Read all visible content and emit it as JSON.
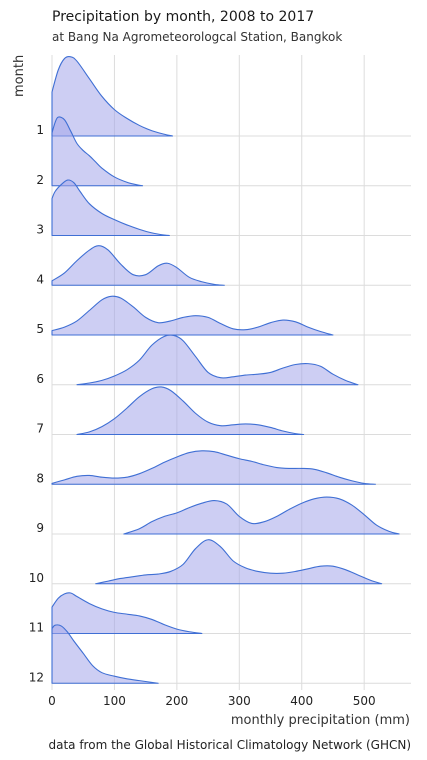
{
  "chart_data": {
    "type": "ridgeline",
    "title": "Precipitation by month, 2008 to 2017",
    "subtitle": "at Bang Na Agrometeorologcal Station, Bangkok",
    "xlabel": "monthly precipitation (mm)",
    "ylabel": "month",
    "caption": "data from the Global Historical Climatology Network (GHCN)",
    "xlim": [
      0,
      575
    ],
    "xticks": [
      0,
      100,
      200,
      300,
      400,
      500
    ],
    "grid": true,
    "colors": {
      "fill": "#a4a6e9",
      "line": "#3f6fd4"
    },
    "series": [
      {
        "name": "1",
        "x": [
          0,
          10,
          20,
          30,
          40,
          60,
          80,
          100,
          120,
          140,
          160,
          180,
          193
        ],
        "y": [
          0.5,
          0.75,
          0.88,
          0.9,
          0.85,
          0.65,
          0.45,
          0.3,
          0.2,
          0.12,
          0.06,
          0.02,
          0.0
        ]
      },
      {
        "name": "2",
        "x": [
          0,
          5,
          10,
          20,
          30,
          40,
          50,
          60,
          70,
          80,
          100,
          120,
          140,
          145
        ],
        "y": [
          0.6,
          0.72,
          0.78,
          0.75,
          0.62,
          0.48,
          0.4,
          0.34,
          0.27,
          0.2,
          0.1,
          0.04,
          0.005,
          0.0
        ]
      },
      {
        "name": "3",
        "x": [
          0,
          5,
          15,
          25,
          35,
          45,
          60,
          80,
          100,
          120,
          140,
          160,
          180,
          188
        ],
        "y": [
          0.42,
          0.5,
          0.58,
          0.63,
          0.6,
          0.5,
          0.36,
          0.25,
          0.18,
          0.12,
          0.07,
          0.03,
          0.005,
          0.0
        ]
      },
      {
        "name": "4",
        "x": [
          0,
          20,
          40,
          60,
          75,
          90,
          110,
          130,
          150,
          170,
          185,
          200,
          220,
          240,
          260,
          276
        ],
        "y": [
          0.05,
          0.14,
          0.28,
          0.4,
          0.45,
          0.4,
          0.24,
          0.12,
          0.12,
          0.22,
          0.25,
          0.2,
          0.09,
          0.04,
          0.01,
          0.0
        ]
      },
      {
        "name": "5",
        "x": [
          0,
          20,
          40,
          60,
          80,
          95,
          110,
          130,
          150,
          170,
          190,
          210,
          230,
          250,
          270,
          290,
          310,
          330,
          350,
          370,
          390,
          410,
          430,
          450
        ],
        "y": [
          0.05,
          0.09,
          0.16,
          0.28,
          0.4,
          0.44,
          0.42,
          0.32,
          0.2,
          0.14,
          0.16,
          0.2,
          0.22,
          0.2,
          0.13,
          0.07,
          0.06,
          0.09,
          0.14,
          0.17,
          0.15,
          0.09,
          0.04,
          0.0
        ]
      },
      {
        "name": "6",
        "x": [
          40,
          60,
          80,
          100,
          120,
          140,
          160,
          180,
          195,
          210,
          230,
          250,
          270,
          290,
          310,
          330,
          350,
          370,
          390,
          410,
          430,
          450,
          470,
          490
        ],
        "y": [
          0.0,
          0.02,
          0.05,
          0.1,
          0.17,
          0.28,
          0.45,
          0.55,
          0.56,
          0.5,
          0.32,
          0.14,
          0.08,
          0.09,
          0.11,
          0.12,
          0.14,
          0.19,
          0.23,
          0.24,
          0.21,
          0.12,
          0.05,
          0.0
        ]
      },
      {
        "name": "7",
        "x": [
          40,
          60,
          80,
          100,
          120,
          140,
          160,
          175,
          190,
          210,
          230,
          250,
          270,
          290,
          310,
          330,
          350,
          370,
          390,
          403
        ],
        "y": [
          0.0,
          0.03,
          0.09,
          0.18,
          0.3,
          0.43,
          0.52,
          0.54,
          0.5,
          0.38,
          0.24,
          0.14,
          0.1,
          0.11,
          0.12,
          0.11,
          0.08,
          0.04,
          0.01,
          0.0
        ]
      },
      {
        "name": "8",
        "x": [
          0,
          20,
          40,
          60,
          80,
          100,
          120,
          140,
          160,
          180,
          200,
          220,
          240,
          260,
          280,
          300,
          320,
          340,
          360,
          380,
          400,
          420,
          440,
          460,
          480,
          500,
          518
        ],
        "y": [
          0.01,
          0.05,
          0.09,
          0.1,
          0.08,
          0.07,
          0.08,
          0.12,
          0.18,
          0.25,
          0.31,
          0.36,
          0.38,
          0.37,
          0.33,
          0.29,
          0.26,
          0.22,
          0.19,
          0.18,
          0.18,
          0.17,
          0.13,
          0.08,
          0.04,
          0.01,
          0.0
        ]
      },
      {
        "name": "9",
        "x": [
          115,
          140,
          160,
          180,
          200,
          220,
          240,
          260,
          280,
          300,
          320,
          340,
          360,
          380,
          400,
          420,
          440,
          460,
          480,
          500,
          520,
          540,
          556
        ],
        "y": [
          0.0,
          0.06,
          0.14,
          0.2,
          0.24,
          0.3,
          0.35,
          0.38,
          0.34,
          0.2,
          0.12,
          0.14,
          0.2,
          0.28,
          0.35,
          0.4,
          0.42,
          0.4,
          0.33,
          0.22,
          0.1,
          0.03,
          0.0
        ]
      },
      {
        "name": "10",
        "x": [
          70,
          90,
          110,
          130,
          150,
          170,
          190,
          210,
          230,
          250,
          270,
          290,
          310,
          330,
          350,
          370,
          390,
          410,
          430,
          450,
          470,
          490,
          510,
          528
        ],
        "y": [
          0.0,
          0.03,
          0.06,
          0.08,
          0.1,
          0.11,
          0.14,
          0.22,
          0.4,
          0.5,
          0.42,
          0.26,
          0.18,
          0.14,
          0.12,
          0.12,
          0.14,
          0.17,
          0.2,
          0.2,
          0.16,
          0.1,
          0.04,
          0.0
        ]
      },
      {
        "name": "11",
        "x": [
          0,
          10,
          20,
          30,
          40,
          60,
          80,
          100,
          120,
          140,
          160,
          180,
          200,
          220,
          240
        ],
        "y": [
          0.3,
          0.4,
          0.45,
          0.46,
          0.42,
          0.34,
          0.28,
          0.24,
          0.22,
          0.2,
          0.16,
          0.1,
          0.05,
          0.02,
          0.0
        ]
      },
      {
        "name": "12",
        "x": [
          0,
          5,
          15,
          25,
          35,
          50,
          65,
          80,
          100,
          120,
          140,
          160,
          170
        ],
        "y": [
          0.62,
          0.66,
          0.65,
          0.58,
          0.48,
          0.34,
          0.2,
          0.12,
          0.08,
          0.05,
          0.03,
          0.01,
          0.0
        ]
      }
    ]
  }
}
